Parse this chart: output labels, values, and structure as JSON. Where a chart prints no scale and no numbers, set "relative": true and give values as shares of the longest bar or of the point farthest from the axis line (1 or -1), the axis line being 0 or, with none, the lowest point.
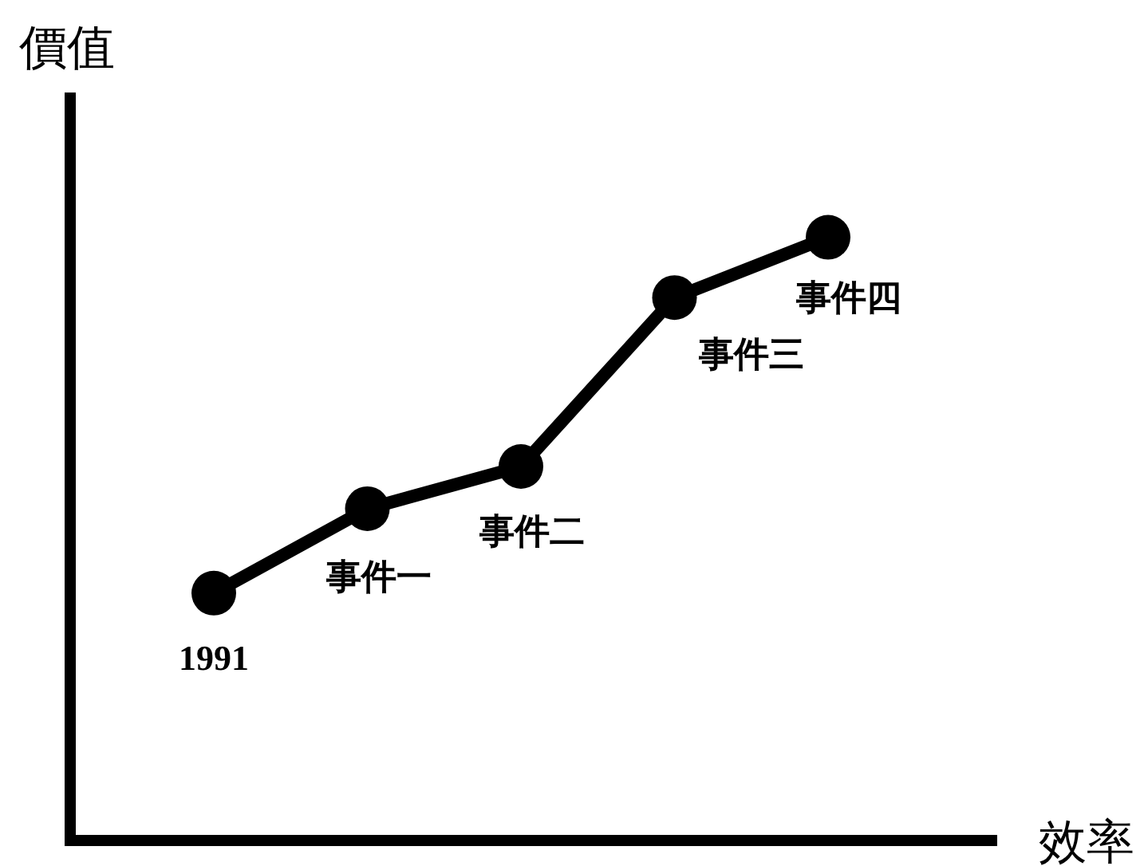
{
  "chart_data": {
    "type": "line",
    "relative": true,
    "xlabel": "效率",
    "ylabel": "價值",
    "categories": [
      null,
      null,
      null,
      null,
      null
    ],
    "series": [
      {
        "color": "#000000",
        "values": [
          0.41,
          0.55,
          0.62,
          0.9,
          1.0
        ]
      }
    ],
    "marker": "circle",
    "line_style": "solid",
    "annotations": [
      "1991",
      "事件一",
      "事件二",
      "事件三",
      "事件四"
    ]
  }
}
